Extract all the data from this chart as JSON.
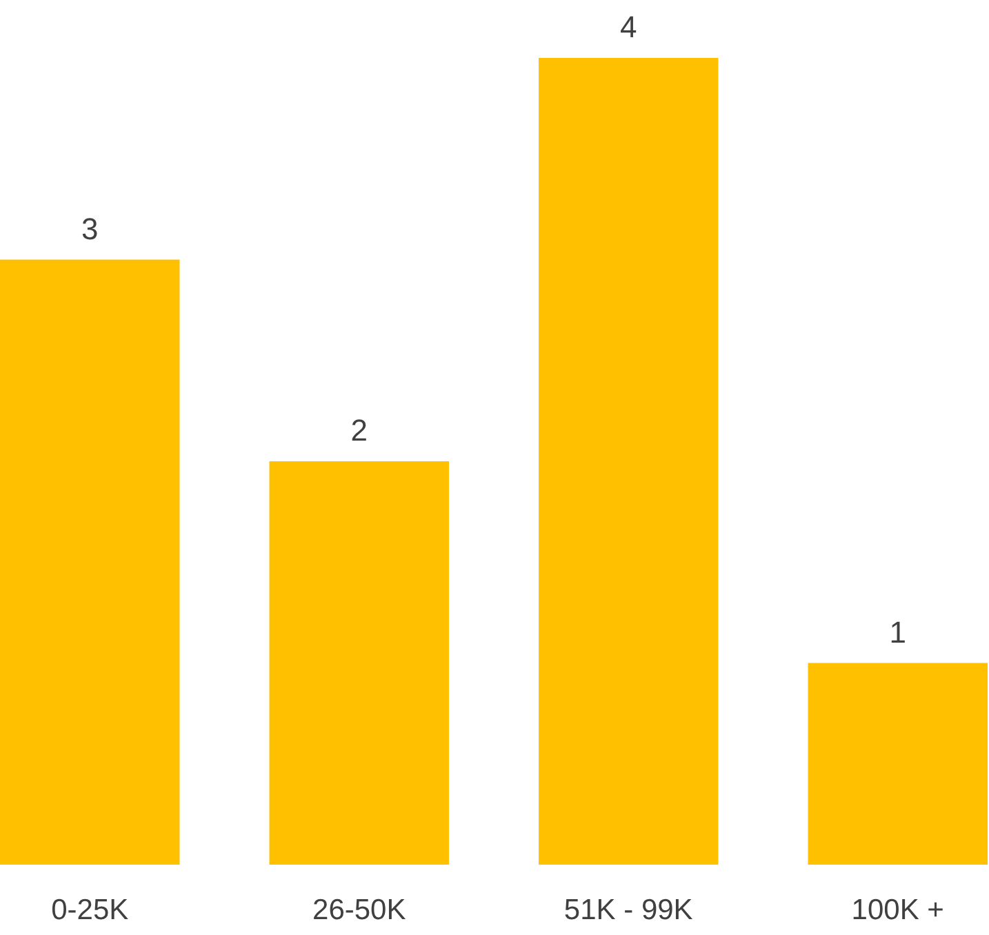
{
  "chart_data": {
    "type": "bar",
    "categories": [
      "0-25K",
      "26-50K",
      "51K - 99K",
      "100K +"
    ],
    "values": [
      3,
      2,
      4,
      1
    ],
    "color": "#ffc000",
    "data_labels": true
  }
}
